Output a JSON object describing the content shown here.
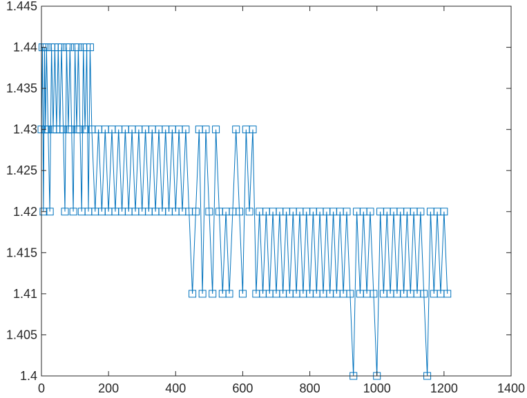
{
  "chart_data": {
    "type": "line",
    "title": "",
    "xlabel": "",
    "ylabel": "",
    "xlim": [
      0,
      1400
    ],
    "ylim": [
      1.4,
      1.445
    ],
    "grid": false,
    "legend": "none",
    "marker": "square",
    "color": "#0072BD",
    "x_ticks": [
      {
        "value": 0,
        "label": "0"
      },
      {
        "value": 200,
        "label": "200"
      },
      {
        "value": 400,
        "label": "400"
      },
      {
        "value": 600,
        "label": "600"
      },
      {
        "value": 800,
        "label": "800"
      },
      {
        "value": 1000,
        "label": "1000"
      },
      {
        "value": 1200,
        "label": "1200"
      },
      {
        "value": 1400,
        "label": "1400"
      }
    ],
    "y_ticks": [
      {
        "value": 1.4,
        "label": "1.4"
      },
      {
        "value": 1.405,
        "label": "1.405"
      },
      {
        "value": 1.41,
        "label": "1.41"
      },
      {
        "value": 1.415,
        "label": "1.415"
      },
      {
        "value": 1.42,
        "label": "1.42"
      },
      {
        "value": 1.425,
        "label": "1.425"
      },
      {
        "value": 1.43,
        "label": "1.43"
      },
      {
        "value": 1.435,
        "label": "1.435"
      },
      {
        "value": 1.44,
        "label": "1.44"
      },
      {
        "value": 1.445,
        "label": "1.445"
      }
    ],
    "series": [
      {
        "x": [
          0,
          3,
          6,
          9,
          12,
          15,
          20,
          25,
          30,
          35,
          40,
          45,
          50,
          55,
          60,
          65,
          70,
          75,
          80,
          85,
          90,
          95,
          100,
          105,
          110,
          115,
          120,
          125,
          130,
          135,
          140,
          145,
          150,
          160,
          170,
          180,
          190,
          200,
          210,
          220,
          230,
          240,
          250,
          260,
          270,
          280,
          290,
          300,
          310,
          320,
          330,
          340,
          350,
          360,
          370,
          380,
          390,
          400,
          410,
          420,
          430,
          440,
          450,
          460,
          470,
          480,
          490,
          500,
          510,
          520,
          530,
          540,
          550,
          560,
          570,
          580,
          590,
          600,
          610,
          620,
          630,
          640,
          650,
          660,
          670,
          680,
          690,
          700,
          710,
          720,
          730,
          740,
          750,
          760,
          770,
          780,
          790,
          800,
          810,
          820,
          830,
          840,
          850,
          860,
          870,
          880,
          890,
          900,
          910,
          920,
          930,
          940,
          950,
          960,
          970,
          980,
          990,
          1000,
          1010,
          1020,
          1030,
          1040,
          1050,
          1060,
          1070,
          1080,
          1090,
          1100,
          1110,
          1120,
          1130,
          1140,
          1150,
          1160,
          1170,
          1180,
          1190,
          1200,
          1210
        ],
        "y": [
          1.43,
          1.44,
          1.42,
          1.44,
          1.43,
          1.44,
          1.43,
          1.42,
          1.44,
          1.43,
          1.44,
          1.43,
          1.44,
          1.43,
          1.44,
          1.43,
          1.42,
          1.44,
          1.43,
          1.44,
          1.43,
          1.42,
          1.44,
          1.43,
          1.44,
          1.43,
          1.42,
          1.44,
          1.43,
          1.44,
          1.42,
          1.44,
          1.43,
          1.42,
          1.43,
          1.42,
          1.43,
          1.42,
          1.43,
          1.42,
          1.43,
          1.42,
          1.43,
          1.42,
          1.43,
          1.42,
          1.43,
          1.42,
          1.43,
          1.42,
          1.43,
          1.42,
          1.43,
          1.42,
          1.43,
          1.42,
          1.43,
          1.42,
          1.43,
          1.42,
          1.43,
          1.42,
          1.41,
          1.42,
          1.43,
          1.41,
          1.43,
          1.42,
          1.41,
          1.43,
          1.42,
          1.41,
          1.42,
          1.41,
          1.42,
          1.43,
          1.42,
          1.41,
          1.43,
          1.42,
          1.43,
          1.41,
          1.42,
          1.41,
          1.42,
          1.41,
          1.42,
          1.41,
          1.42,
          1.41,
          1.42,
          1.41,
          1.42,
          1.41,
          1.42,
          1.41,
          1.42,
          1.41,
          1.42,
          1.41,
          1.42,
          1.41,
          1.42,
          1.41,
          1.42,
          1.41,
          1.42,
          1.41,
          1.42,
          1.41,
          1.4,
          1.42,
          1.41,
          1.42,
          1.41,
          1.42,
          1.41,
          1.4,
          1.42,
          1.41,
          1.42,
          1.41,
          1.42,
          1.41,
          1.42,
          1.41,
          1.42,
          1.41,
          1.42,
          1.41,
          1.42,
          1.41,
          1.4,
          1.42,
          1.41,
          1.42,
          1.41,
          1.42,
          1.41
        ]
      }
    ]
  }
}
